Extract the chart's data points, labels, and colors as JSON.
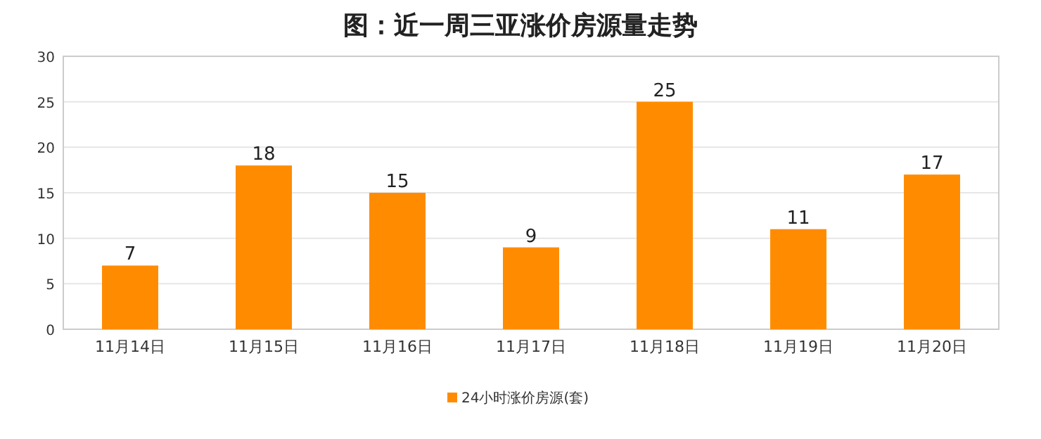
{
  "chart_data": {
    "type": "bar",
    "title": "图：近一周三亚涨价房源量走势",
    "categories": [
      "11月14日",
      "11月15日",
      "11月16日",
      "11月17日",
      "11月18日",
      "11月19日",
      "11月20日"
    ],
    "series": [
      {
        "name": "24小时涨价房源(套)",
        "color": "#ff8c00",
        "values": [
          7,
          18,
          15,
          9,
          25,
          11,
          17
        ]
      }
    ],
    "ylim": [
      0,
      30
    ],
    "yticks": [
      0,
      5,
      10,
      15,
      20,
      25,
      30
    ],
    "grid": "y",
    "legend": "bottom",
    "data_labels": true
  }
}
